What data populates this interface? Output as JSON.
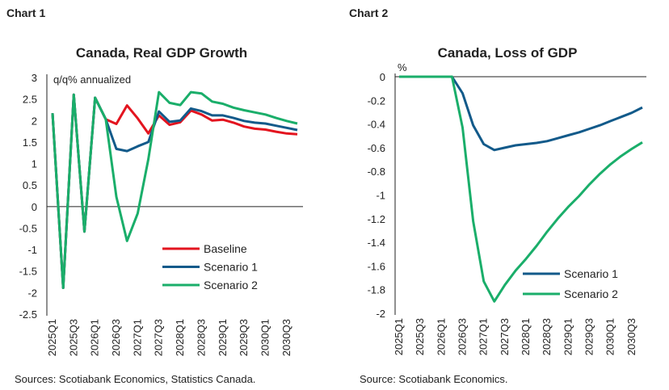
{
  "colors": {
    "baseline": "#e3141f",
    "scenario1": "#125a8a",
    "scenario2": "#1aae6a",
    "axis": "#222222"
  },
  "chart_data": [
    {
      "type": "line",
      "label": "Chart 1",
      "title": "Canada, Real GDP Growth",
      "ylabel": "q/q% annualized",
      "source": "Sources: Scotiabank Economics, Statistics Canada.",
      "ylim": [
        -2.5,
        3
      ],
      "yticks": [
        3,
        2.5,
        2,
        1.5,
        1,
        0.5,
        0,
        -0.5,
        -1,
        -1.5,
        -2,
        -2.5
      ],
      "grid": false,
      "legend": "bottom-right",
      "x": [
        "2025Q1",
        "2025Q2",
        "2025Q3",
        "2025Q4",
        "2026Q1",
        "2026Q2",
        "2026Q3",
        "2026Q4",
        "2027Q1",
        "2027Q2",
        "2027Q3",
        "2027Q4",
        "2028Q1",
        "2028Q2",
        "2028Q3",
        "2028Q4",
        "2029Q1",
        "2029Q2",
        "2029Q3",
        "2029Q4",
        "2030Q1",
        "2030Q2",
        "2030Q3",
        "2030Q4"
      ],
      "xticklabels": [
        "2025Q1",
        "2025Q3",
        "2026Q1",
        "2026Q3",
        "2027Q1",
        "2027Q3",
        "2028Q1",
        "2028Q3",
        "2029Q1",
        "2029Q3",
        "2030Q1",
        "2030Q3"
      ],
      "series": [
        {
          "name": "Baseline",
          "color": "#e3141f",
          "values": [
            2.17,
            -1.89,
            2.6,
            -0.58,
            2.53,
            2.03,
            1.92,
            2.35,
            2.05,
            1.7,
            2.12,
            1.9,
            1.96,
            2.23,
            2.14,
            2.0,
            2.02,
            1.95,
            1.86,
            1.81,
            1.79,
            1.74,
            1.7,
            1.68
          ]
        },
        {
          "name": "Scenario 1",
          "color": "#125a8a",
          "values": [
            2.17,
            -1.89,
            2.6,
            -0.58,
            2.53,
            2.03,
            1.34,
            1.29,
            1.4,
            1.5,
            2.21,
            1.97,
            2.0,
            2.28,
            2.22,
            2.12,
            2.12,
            2.06,
            1.99,
            1.95,
            1.93,
            1.88,
            1.83,
            1.78
          ]
        },
        {
          "name": "Scenario 2",
          "color": "#1aae6a",
          "values": [
            2.17,
            -1.89,
            2.6,
            -0.58,
            2.53,
            2.03,
            0.23,
            -0.8,
            -0.16,
            1.1,
            2.66,
            2.41,
            2.36,
            2.66,
            2.63,
            2.44,
            2.39,
            2.3,
            2.24,
            2.19,
            2.14,
            2.06,
            1.99,
            1.93
          ]
        }
      ]
    },
    {
      "type": "line",
      "label": "Chart 2",
      "title": "Canada, Loss of GDP",
      "ylabel": "%",
      "source": "Source: Scotiabank Economics.",
      "ylim": [
        -2,
        0
      ],
      "yticks": [
        0,
        -0.2,
        -0.4,
        -0.6,
        -0.8,
        -1,
        -1.2,
        -1.4,
        -1.6,
        -1.8,
        -2
      ],
      "grid": false,
      "legend": "bottom-right",
      "x": [
        "2025Q1",
        "2025Q2",
        "2025Q3",
        "2025Q4",
        "2026Q1",
        "2026Q2",
        "2026Q3",
        "2026Q4",
        "2027Q1",
        "2027Q2",
        "2027Q3",
        "2027Q4",
        "2028Q1",
        "2028Q2",
        "2028Q3",
        "2028Q4",
        "2029Q1",
        "2029Q2",
        "2029Q3",
        "2029Q4",
        "2030Q1",
        "2030Q2",
        "2030Q3",
        "2030Q4"
      ],
      "xticklabels": [
        "2025Q1",
        "2025Q3",
        "2026Q1",
        "2026Q3",
        "2027Q1",
        "2027Q3",
        "2028Q1",
        "2028Q3",
        "2029Q1",
        "2029Q3",
        "2030Q1",
        "2030Q3"
      ],
      "series": [
        {
          "name": "Scenario 1",
          "color": "#125a8a",
          "values": [
            0,
            0,
            0,
            0,
            0,
            0,
            -0.14,
            -0.41,
            -0.57,
            -0.62,
            -0.6,
            -0.58,
            -0.57,
            -0.56,
            -0.545,
            -0.52,
            -0.495,
            -0.47,
            -0.44,
            -0.41,
            -0.375,
            -0.34,
            -0.305,
            -0.26
          ]
        },
        {
          "name": "Scenario 2",
          "color": "#1aae6a",
          "values": [
            0,
            0,
            0,
            0,
            0,
            0,
            -0.43,
            -1.22,
            -1.73,
            -1.9,
            -1.76,
            -1.64,
            -1.54,
            -1.43,
            -1.31,
            -1.2,
            -1.1,
            -1.01,
            -0.91,
            -0.82,
            -0.74,
            -0.67,
            -0.61,
            -0.555
          ]
        }
      ]
    }
  ]
}
